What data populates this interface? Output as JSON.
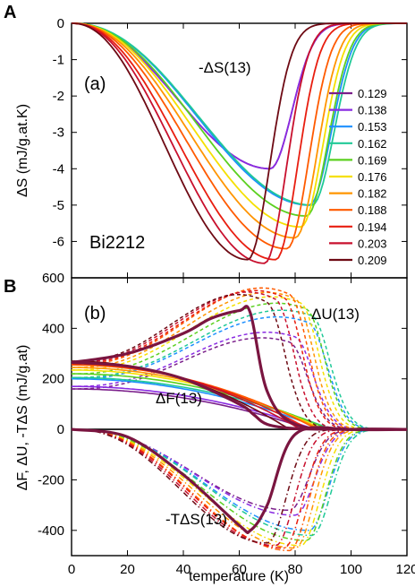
{
  "figure": {
    "panel_a_letter": "A",
    "panel_b_letter": "B",
    "xlabel": "temperature (K)",
    "colors": {
      "0.129": "#7a1e8a",
      "0.138": "#8a2be2",
      "0.153": "#1e90ff",
      "0.162": "#20c997",
      "0.169": "#5cd020",
      "0.176": "#f5e000",
      "0.182": "#ff9500",
      "0.188": "#ff5a00",
      "0.194": "#e81e10",
      "0.203": "#c8102e",
      "0.209": "#6e0a14",
      "thirteen": "#7a1540"
    }
  },
  "chart_data": [
    {
      "type": "line",
      "panel": "a",
      "subplot_label": "(a)",
      "ylabel": "ΔS  (mJ/g.at.K)",
      "annotation": "-ΔS(13)",
      "material_label": "Bi2212",
      "xlim": [
        0,
        120
      ],
      "ylim": [
        -7,
        0
      ],
      "xticks": [
        0,
        20,
        40,
        60,
        80,
        100,
        120
      ],
      "yticks": [
        0,
        -1,
        -2,
        -3,
        -4,
        -5,
        -6,
        -7
      ],
      "ytick_labels": [
        "0",
        "-1",
        "-2",
        "-3",
        "-4",
        "-5",
        "-6",
        ""
      ],
      "legend_position": "right",
      "legend": [
        "0.129",
        "0.138",
        "0.153",
        "0.162",
        "0.169",
        "0.176",
        "0.182",
        "0.188",
        "0.194",
        "0.203",
        "0.209"
      ],
      "curve_params_Tmin_Smin_width": [
        [
          71,
          -4.0,
          36
        ],
        [
          71,
          -4.0,
          34
        ],
        [
          85,
          -5.0,
          44
        ],
        [
          86,
          -5.0,
          42
        ],
        [
          84,
          -5.3,
          40
        ],
        [
          82,
          -5.6,
          38
        ],
        [
          80,
          -5.9,
          36
        ],
        [
          77,
          -6.2,
          34
        ],
        [
          73,
          -6.5,
          32
        ],
        [
          69,
          -6.6,
          30
        ],
        [
          63,
          -6.5,
          27
        ]
      ],
      "series_13": {
        "name": "-ΔS(13)",
        "values_x": [
          0,
          20,
          40,
          60,
          65,
          70,
          75,
          80,
          90,
          100,
          120
        ],
        "values_y": [
          0,
          -0.7,
          -2.3,
          -3.4,
          -3.55,
          -3.5,
          -2.6,
          -1.0,
          -0.1,
          0,
          0
        ]
      }
    },
    {
      "type": "line",
      "panel": "b",
      "subplot_label": "(b)",
      "ylabel": "ΔF, ΔU, -TΔS  (mJ/g.at)",
      "annotations": [
        "ΔU(13)",
        "ΔF(13)",
        "-TΔS(13)"
      ],
      "xlim": [
        0,
        120
      ],
      "ylim": [
        -500,
        600
      ],
      "xticks": [
        0,
        20,
        40,
        60,
        80,
        100,
        120
      ],
      "yticks": [
        -400,
        -200,
        0,
        200,
        400,
        600
      ],
      "dU_peak": [
        [
          75,
          300
        ],
        [
          77,
          320
        ],
        [
          80,
          410
        ],
        [
          83,
          460
        ],
        [
          82,
          510
        ],
        [
          80,
          540
        ],
        [
          79,
          555
        ],
        [
          78,
          565
        ],
        [
          75,
          560
        ],
        [
          72,
          545
        ],
        [
          68,
          520
        ]
      ],
      "dF_start": [
        160,
        170,
        200,
        205,
        220,
        235,
        245,
        255,
        260,
        265,
        270
      ],
      "TdS_min": [
        [
          78,
          -320
        ],
        [
          80,
          -340
        ],
        [
          85,
          -400
        ],
        [
          86,
          -420
        ],
        [
          84,
          -440
        ],
        [
          82,
          -460
        ],
        [
          80,
          -470
        ],
        [
          78,
          -480
        ],
        [
          76,
          -470
        ],
        [
          73,
          -460
        ],
        [
          70,
          -450
        ]
      ],
      "series_13": {
        "dU13": {
          "x": [
            0,
            20,
            40,
            50,
            60,
            64,
            70,
            80,
            100,
            120
          ],
          "y": [
            265,
            300,
            380,
            440,
            470,
            460,
            150,
            20,
            0,
            0
          ]
        },
        "dF13": {
          "x": [
            0,
            20,
            40,
            60,
            65,
            70,
            80,
            100,
            120
          ],
          "y": [
            265,
            250,
            200,
            100,
            60,
            20,
            3,
            0,
            0
          ]
        },
        "TdS13": {
          "x": [
            0,
            20,
            40,
            60,
            64,
            70,
            80,
            100,
            120
          ],
          "y": [
            0,
            -30,
            -180,
            -380,
            -400,
            -300,
            -20,
            0,
            0
          ]
        }
      }
    }
  ]
}
